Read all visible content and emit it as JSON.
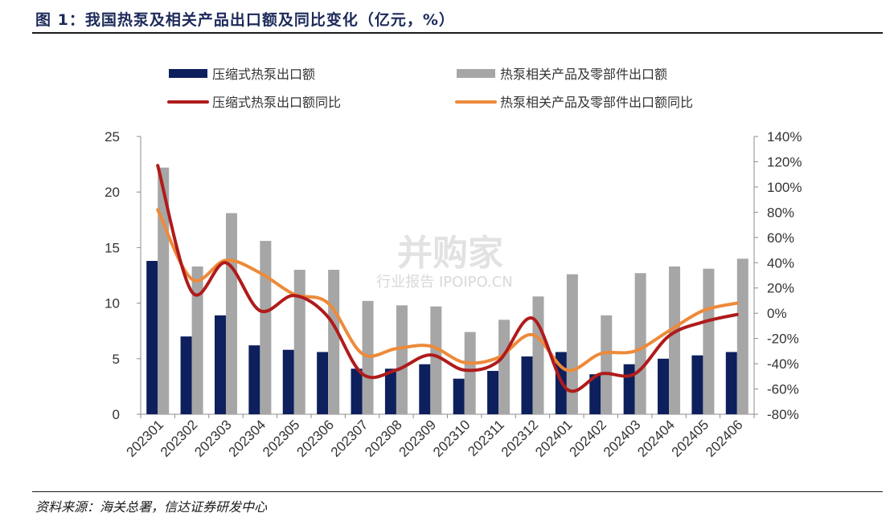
{
  "header": {
    "title": "图 1：我国热泵及相关产品出口额及同比变化（亿元，%）"
  },
  "footer": {
    "source": "资料来源：海关总署，信达证券研发中心"
  },
  "watermark": {
    "main": "并购家",
    "sub": "行业报告 IPOIPO.CN"
  },
  "colors": {
    "bar_navy": "#0d1f5c",
    "bar_gray": "#a6a6a6",
    "line_red": "#b01b1b",
    "line_orange": "#ed8a3a"
  },
  "chart_data": {
    "type": "bar",
    "categories": [
      "202301",
      "202302",
      "202303",
      "202304",
      "202305",
      "202306",
      "202307",
      "202308",
      "202309",
      "202310",
      "202311",
      "202312",
      "202401",
      "202402",
      "202403",
      "202404",
      "202405",
      "202406"
    ],
    "left_axis": {
      "ylim": [
        0,
        25
      ],
      "ticks": [
        "0",
        "5",
        "10",
        "15",
        "20",
        "25"
      ],
      "tick_values": [
        0,
        5,
        10,
        15,
        20,
        25
      ]
    },
    "right_axis": {
      "ylim": [
        -80,
        140
      ],
      "ticks": [
        "-80%",
        "-60%",
        "-40%",
        "-20%",
        "0%",
        "20%",
        "40%",
        "60%",
        "80%",
        "100%",
        "120%",
        "140%"
      ],
      "tick_values": [
        -80,
        -60,
        -40,
        -20,
        0,
        20,
        40,
        60,
        80,
        100,
        120,
        140
      ]
    },
    "series": [
      {
        "name": "压缩式热泵出口额",
        "kind": "bar",
        "axis": "left",
        "color": "#0d1f5c",
        "values": [
          13.8,
          7.0,
          8.9,
          6.2,
          5.8,
          5.6,
          4.1,
          4.1,
          4.5,
          3.2,
          3.9,
          5.2,
          5.6,
          3.6,
          4.5,
          5.0,
          5.3,
          5.6
        ]
      },
      {
        "name": "热泵相关产品及零部件出口额",
        "kind": "bar",
        "axis": "left",
        "color": "#a6a6a6",
        "values": [
          22.2,
          13.3,
          18.1,
          15.6,
          13.0,
          13.0,
          10.2,
          9.8,
          9.7,
          7.4,
          8.5,
          10.6,
          12.6,
          8.9,
          12.7,
          13.3,
          13.1,
          14.0
        ]
      },
      {
        "name": "压缩式热泵出口额同比",
        "kind": "line",
        "axis": "right",
        "color": "#b01b1b",
        "values": [
          117,
          17,
          40,
          2,
          14,
          -3,
          -48,
          -45,
          -33,
          -45,
          -38,
          -4,
          -60,
          -48,
          -48,
          -18,
          -7,
          -1
        ]
      },
      {
        "name": "热泵相关产品及零部件出口额同比",
        "kind": "line",
        "axis": "right",
        "color": "#ed8a3a",
        "values": [
          82,
          27,
          42,
          32,
          15,
          8,
          -32,
          -28,
          -26,
          -39,
          -35,
          -17,
          -45,
          -32,
          -30,
          -14,
          2,
          8
        ]
      }
    ],
    "legend_position": "top",
    "grid": false
  }
}
